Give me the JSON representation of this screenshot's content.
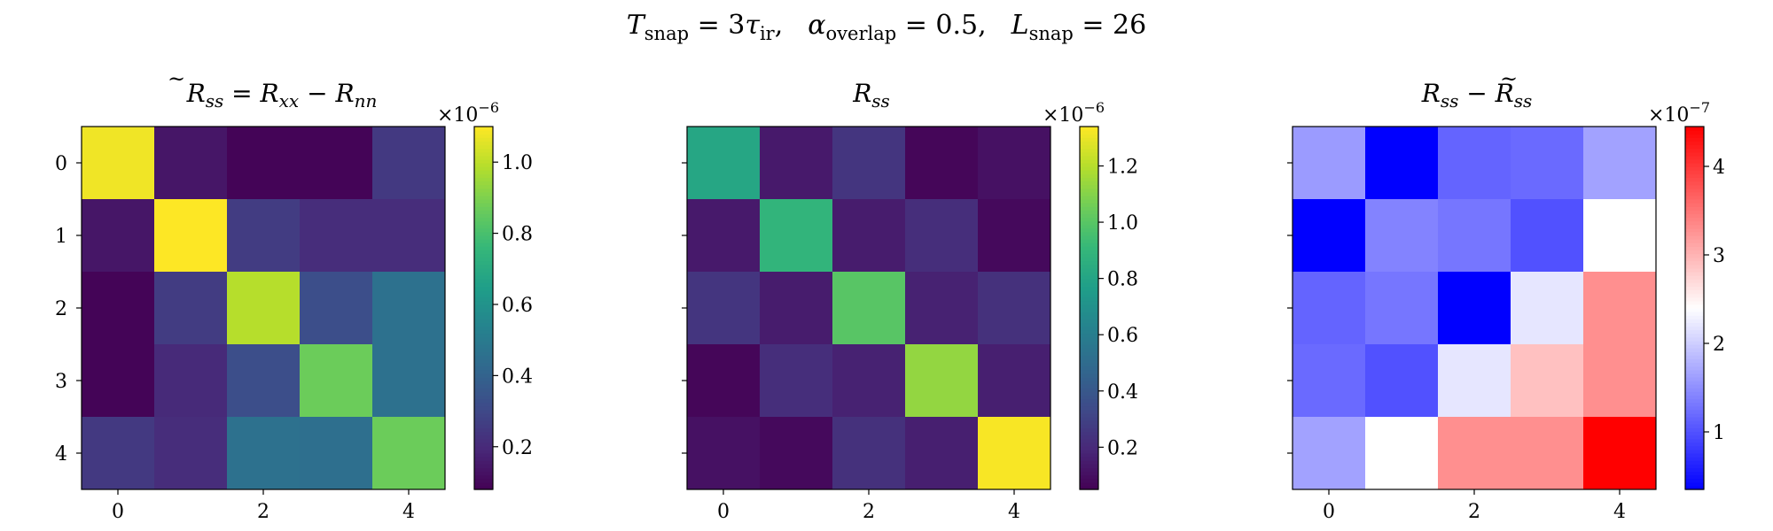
{
  "suptitle": {
    "t_var": "T",
    "t_sub": "snap",
    "t_eq": " = 3",
    "tau": "τ",
    "tau_sub": "ir",
    "sep1": ",",
    "alpha": "α",
    "alpha_sub": "overlap",
    "alpha_eq": " = 0.5,",
    "l_var": "L",
    "l_sub": "snap",
    "l_eq": " = 26"
  },
  "chart_data": [
    {
      "type": "heatmap",
      "title": "R̃ss = Rxx − Rnn",
      "title_parts": {
        "R": "R",
        "tilde": "~",
        "ss": "ss",
        "eq": " = ",
        "R2": "R",
        "xx": "xx",
        "minus": " − ",
        "R3": "R",
        "nn": "nn"
      },
      "colormap": "viridis",
      "x_ticks": [
        0,
        2,
        4
      ],
      "y_ticks": [
        0,
        1,
        2,
        3,
        4
      ],
      "matrix": [
        [
          1.08,
          0.14,
          0.09,
          0.09,
          0.25
        ],
        [
          0.14,
          1.1,
          0.26,
          0.21,
          0.21
        ],
        [
          0.09,
          0.26,
          0.99,
          0.32,
          0.46
        ],
        [
          0.09,
          0.2,
          0.32,
          0.87,
          0.46
        ],
        [
          0.25,
          0.21,
          0.46,
          0.45,
          0.87
        ]
      ],
      "vmin": 0.08,
      "vmax": 1.1,
      "colorbar_ticks": [
        0.2,
        0.4,
        0.6,
        0.8,
        1.0
      ],
      "colorbar_tick_labels": [
        "0.2",
        "0.4",
        "0.6",
        "0.8",
        "1.0"
      ],
      "scale_label": "×10",
      "scale_exp": "−6"
    },
    {
      "type": "heatmap",
      "title": "Rss",
      "title_parts": {
        "R": "R",
        "ss": "ss"
      },
      "colormap": "viridis",
      "x_ticks": [
        0,
        2,
        4
      ],
      "y_ticks": [
        0,
        1,
        2,
        3,
        4
      ],
      "matrix": [
        [
          0.81,
          0.14,
          0.25,
          0.07,
          0.11
        ],
        [
          0.14,
          0.89,
          0.15,
          0.22,
          0.08
        ],
        [
          0.25,
          0.15,
          1.0,
          0.17,
          0.23
        ],
        [
          0.07,
          0.22,
          0.17,
          1.13,
          0.16
        ],
        [
          0.11,
          0.08,
          0.23,
          0.16,
          1.33
        ]
      ],
      "vmin": 0.05,
      "vmax": 1.34,
      "colorbar_ticks": [
        0.2,
        0.4,
        0.6,
        0.8,
        1.0,
        1.2
      ],
      "colorbar_tick_labels": [
        "0.2",
        "0.4",
        "0.6",
        "0.8",
        "1.0",
        "1.2"
      ],
      "scale_label": "×10",
      "scale_exp": "−6"
    },
    {
      "type": "heatmap",
      "title": "Rss − R̃ss",
      "title_parts": {
        "R": "R",
        "ss": "ss",
        "minus": " − ",
        "R2": "R",
        "tilde": "~",
        "ss2": "ss"
      },
      "colormap": "bwr",
      "x_ticks": [
        0,
        2,
        4
      ],
      "y_ticks": [
        0,
        1,
        2,
        3,
        4
      ],
      "matrix": [
        [
          1.6,
          0.35,
          1.15,
          1.2,
          1.65
        ],
        [
          0.35,
          1.4,
          1.3,
          1.0,
          2.4
        ],
        [
          1.15,
          1.3,
          0.35,
          2.2,
          3.3
        ],
        [
          1.2,
          1.0,
          2.2,
          2.9,
          3.3
        ],
        [
          1.65,
          2.4,
          3.3,
          3.3,
          4.45
        ]
      ],
      "vmin": 0.35,
      "vmax": 4.45,
      "colorbar_ticks": [
        1,
        2,
        3,
        4
      ],
      "colorbar_tick_labels": [
        "1",
        "2",
        "3",
        "4"
      ],
      "scale_label": "×10",
      "scale_exp": "−7"
    }
  ]
}
